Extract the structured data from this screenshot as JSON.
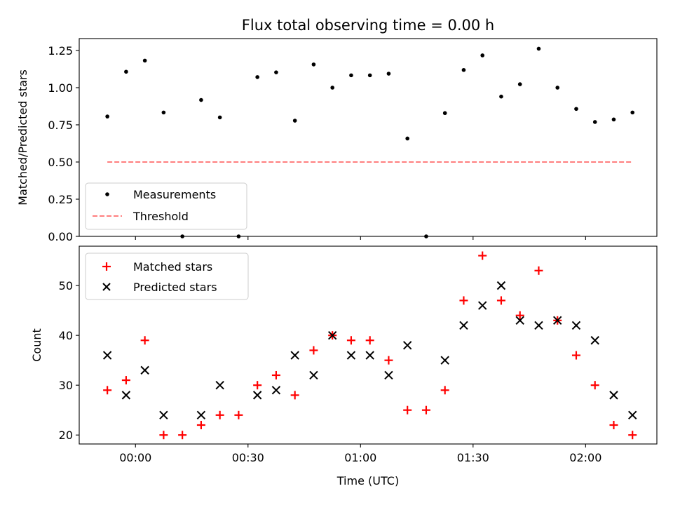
{
  "chart_data": [
    {
      "type": "scatter",
      "title": "Flux total observing time = 0.00 h",
      "xlabel": "",
      "ylabel": "Matched/Predicted stars",
      "ylim": [
        0,
        1.33
      ],
      "yticks": [
        0,
        0.25,
        0.5,
        0.75,
        1.0,
        1.25
      ],
      "ytick_labels": [
        "0.00",
        "0.25",
        "0.50",
        "0.75",
        "1.00",
        "1.25"
      ],
      "xlim": [
        "23:45",
        "02:19"
      ],
      "xticks": [
        "00:00",
        "00:30",
        "01:00",
        "01:30",
        "02:00"
      ],
      "show_xtick_labels": false,
      "legend_position": "lower-left",
      "series": [
        {
          "name": "Measurements",
          "marker": "dot",
          "color": "#000000",
          "x": [
            "23:52:30",
            "23:57:30",
            "00:02:30",
            "00:07:30",
            "00:12:30",
            "00:17:30",
            "00:22:30",
            "00:27:30",
            "00:32:30",
            "00:37:30",
            "00:42:30",
            "00:47:30",
            "00:52:30",
            "00:57:30",
            "01:02:30",
            "01:07:30",
            "01:12:30",
            "01:17:30",
            "01:22:30",
            "01:27:30",
            "01:32:30",
            "01:37:30",
            "01:42:30",
            "01:47:30",
            "01:52:30",
            "01:57:30",
            "02:02:30",
            "02:07:30",
            "02:12:30"
          ],
          "y": [
            0.806,
            1.107,
            1.182,
            0.833,
            0.0,
            0.917,
            0.8,
            0.0,
            1.071,
            1.103,
            0.778,
            1.156,
            1.0,
            1.083,
            1.083,
            1.094,
            0.658,
            0.0,
            0.829,
            1.119,
            1.217,
            0.94,
            1.023,
            1.262,
            1.0,
            0.857,
            0.769,
            0.786,
            0.833
          ]
        },
        {
          "name": "Threshold",
          "line": "dashed",
          "color": "#ff7f7f",
          "x": [
            "23:52:30",
            "02:12:30"
          ],
          "y": [
            0.5,
            0.5
          ]
        }
      ]
    },
    {
      "type": "scatter",
      "title": "",
      "xlabel": "Time (UTC)",
      "ylabel": "Count",
      "ylim": [
        18.2,
        57.9
      ],
      "yticks": [
        20,
        30,
        40,
        50
      ],
      "ytick_labels": [
        "20",
        "30",
        "40",
        "50"
      ],
      "xlim": [
        "23:45",
        "02:19"
      ],
      "xticks": [
        "00:00",
        "00:30",
        "01:00",
        "01:30",
        "02:00"
      ],
      "xtick_labels": [
        "00:00",
        "00:30",
        "01:00",
        "01:30",
        "02:00"
      ],
      "legend_position": "upper-left",
      "series": [
        {
          "name": "Matched stars",
          "marker": "plus",
          "color": "#ff0000",
          "x": [
            "23:52:30",
            "23:57:30",
            "00:02:30",
            "00:07:30",
            "00:12:30",
            "00:17:30",
            "00:22:30",
            "00:27:30",
            "00:32:30",
            "00:37:30",
            "00:42:30",
            "00:47:30",
            "00:52:30",
            "00:57:30",
            "01:02:30",
            "01:07:30",
            "01:12:30",
            "01:17:30",
            "01:22:30",
            "01:27:30",
            "01:32:30",
            "01:37:30",
            "01:42:30",
            "01:47:30",
            "01:52:30",
            "01:57:30",
            "02:02:30",
            "02:07:30",
            "02:12:30"
          ],
          "y": [
            29,
            31,
            39,
            20,
            20,
            22,
            24,
            24,
            30,
            32,
            28,
            37,
            40,
            39,
            39,
            35,
            25,
            25,
            29,
            47,
            56,
            47,
            44,
            53,
            43,
            36,
            30,
            22,
            20
          ]
        },
        {
          "name": "Predicted stars",
          "marker": "x",
          "color": "#000000",
          "x": [
            "23:52:30",
            "23:57:30",
            "00:02:30",
            "00:07:30",
            "00:17:30",
            "00:22:30",
            "00:32:30",
            "00:37:30",
            "00:42:30",
            "00:47:30",
            "00:52:30",
            "00:57:30",
            "01:02:30",
            "01:07:30",
            "01:12:30",
            "01:22:30",
            "01:27:30",
            "01:32:30",
            "01:37:30",
            "01:42:30",
            "01:47:30",
            "01:52:30",
            "01:57:30",
            "02:02:30",
            "02:07:30",
            "02:12:30"
          ],
          "y": [
            36,
            28,
            33,
            24,
            24,
            30,
            28,
            29,
            36,
            32,
            40,
            36,
            36,
            32,
            38,
            35,
            42,
            46,
            50,
            43,
            42,
            43,
            42,
            39,
            28,
            24
          ]
        }
      ]
    }
  ]
}
